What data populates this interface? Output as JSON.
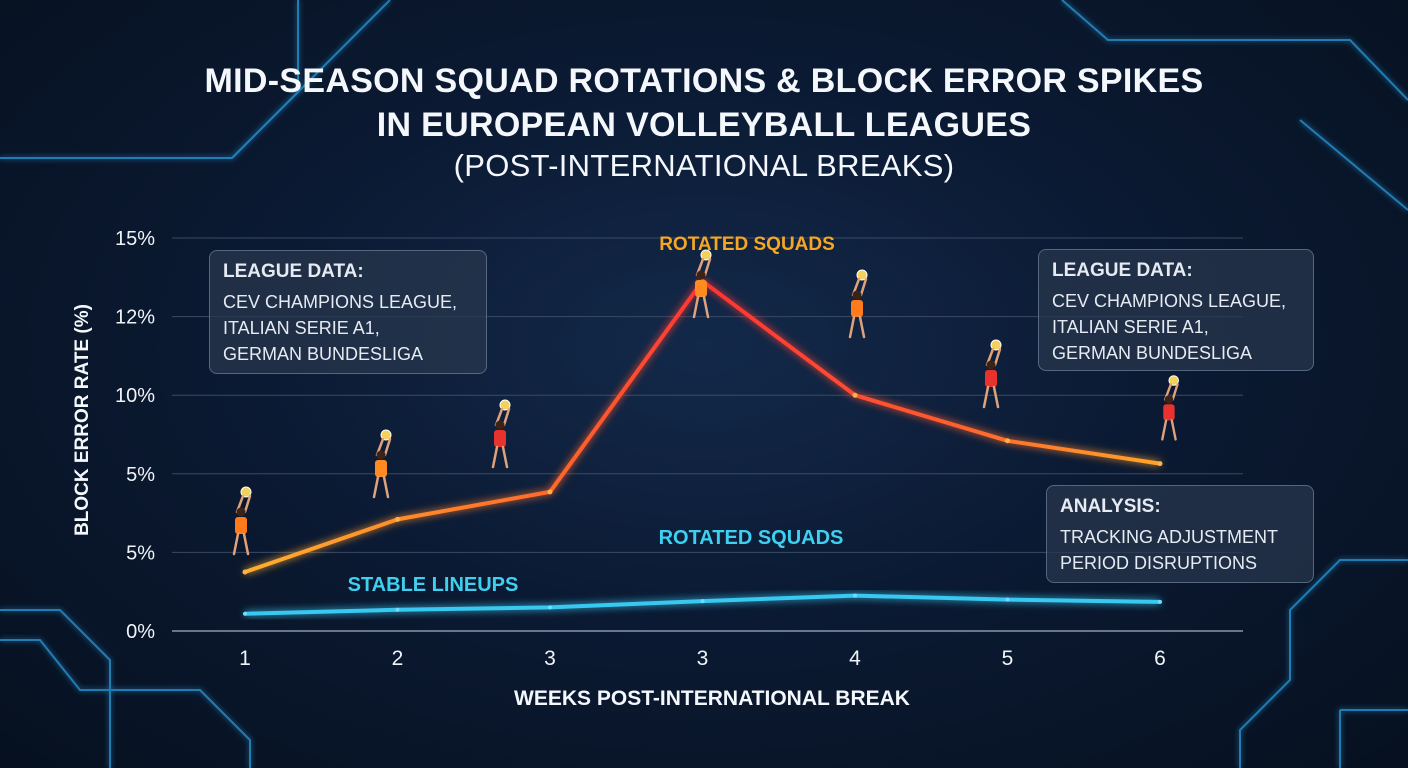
{
  "title": {
    "line1": "MID-SEASON SQUAD ROTATIONS & BLOCK ERROR SPIKES",
    "line2": "IN EUROPEAN VOLLEYBALL LEAGUES",
    "line3": "(POST-INTERNATIONAL BREAKS)"
  },
  "colors": {
    "rotated_start": "#ff9d2e",
    "rotated_peak": "#ff3b3b",
    "stable": "#38c8f0",
    "axis": "#ffffff",
    "label_orange": "#f5a623",
    "label_cyan": "#3fd0f0"
  },
  "panels": {
    "league_left": {
      "heading": "LEAGUE DATA:",
      "lines": [
        "CEV CHAMPIONS LEAGUE,",
        "ITALIAN SERIE A1,",
        "GERMAN BUNDESLIGA"
      ]
    },
    "league_right": {
      "heading": "LEAGUE DATA:",
      "lines": [
        "CEV CHAMPIONS LEAGUE,",
        "ITALIAN SERIE A1,",
        "GERMAN BUNDESLIGA"
      ]
    },
    "analysis": {
      "heading": "ANALYSIS:",
      "lines": [
        "TRACKING ADJUSTMENT",
        "PERIOD DISRUPTIONS"
      ]
    }
  },
  "chart_data": {
    "type": "line",
    "title": "MID-SEASON SQUAD ROTATIONS & BLOCK ERROR SPIKES IN EUROPEAN VOLLEYBALL LEAGUES (POST-INTERNATIONAL BREAKS)",
    "xlabel": "WEEKS POST-INTERNATIONAL BREAK",
    "ylabel": "BLOCK ERROR RATE (%)",
    "categories": [
      "1",
      "2",
      "3",
      "3",
      "4",
      "5",
      "6"
    ],
    "y_ticks": [
      "0%",
      "5%",
      "5%",
      "10%",
      "12%",
      "15%"
    ],
    "y_tick_positions": [
      0,
      1,
      2,
      3,
      4,
      5
    ],
    "ylim": [
      0,
      5
    ],
    "grid": true,
    "series": [
      {
        "name": "ROTATED SQUADS",
        "values": [
          0.75,
          1.42,
          1.77,
          4.45,
          3.0,
          2.42,
          2.13
        ]
      },
      {
        "name": "STABLE LINEUPS",
        "values": [
          0.22,
          0.27,
          0.3,
          0.38,
          0.45,
          0.4,
          0.37
        ]
      }
    ],
    "annotations": [
      {
        "text": "ROTATED SQUADS",
        "color": "orange"
      },
      {
        "text": "ROTATED SQUADS",
        "color": "cyan"
      },
      {
        "text": "STABLE LINEUPS",
        "color": "cyan"
      }
    ]
  }
}
